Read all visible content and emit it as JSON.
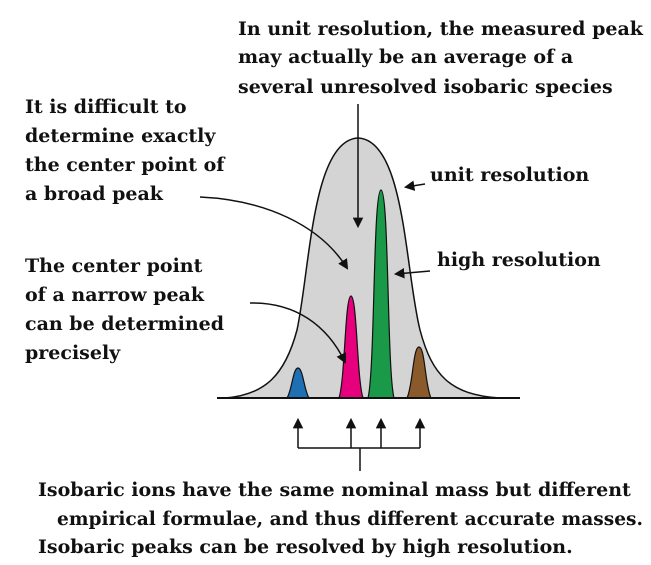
{
  "annotations": {
    "top": [
      "In unit resolution, the measured peak",
      "may actually be an average of a",
      "several unresolved isobaric species"
    ],
    "broad": [
      "It is difficult to",
      "determine exactly",
      "the center point of",
      "a broad peak"
    ],
    "narrow": [
      "The center point",
      "of a narrow peak",
      "can be determined",
      "precisely"
    ],
    "unit_resolution": "unit resolution",
    "high_resolution": "high resolution",
    "bottom": [
      "Isobaric ions have the same nominal mass but different",
      "empirical formulae, and thus different accurate masses.",
      "Isobaric peaks can be resolved by high resolution."
    ]
  },
  "colors": {
    "broad_peak": "#d4d4d4",
    "peak_blue": "#1f6fb5",
    "peak_magenta": "#e6007e",
    "peak_green": "#1a9a48",
    "peak_brown": "#8b5a2b",
    "stroke": "#111111"
  }
}
